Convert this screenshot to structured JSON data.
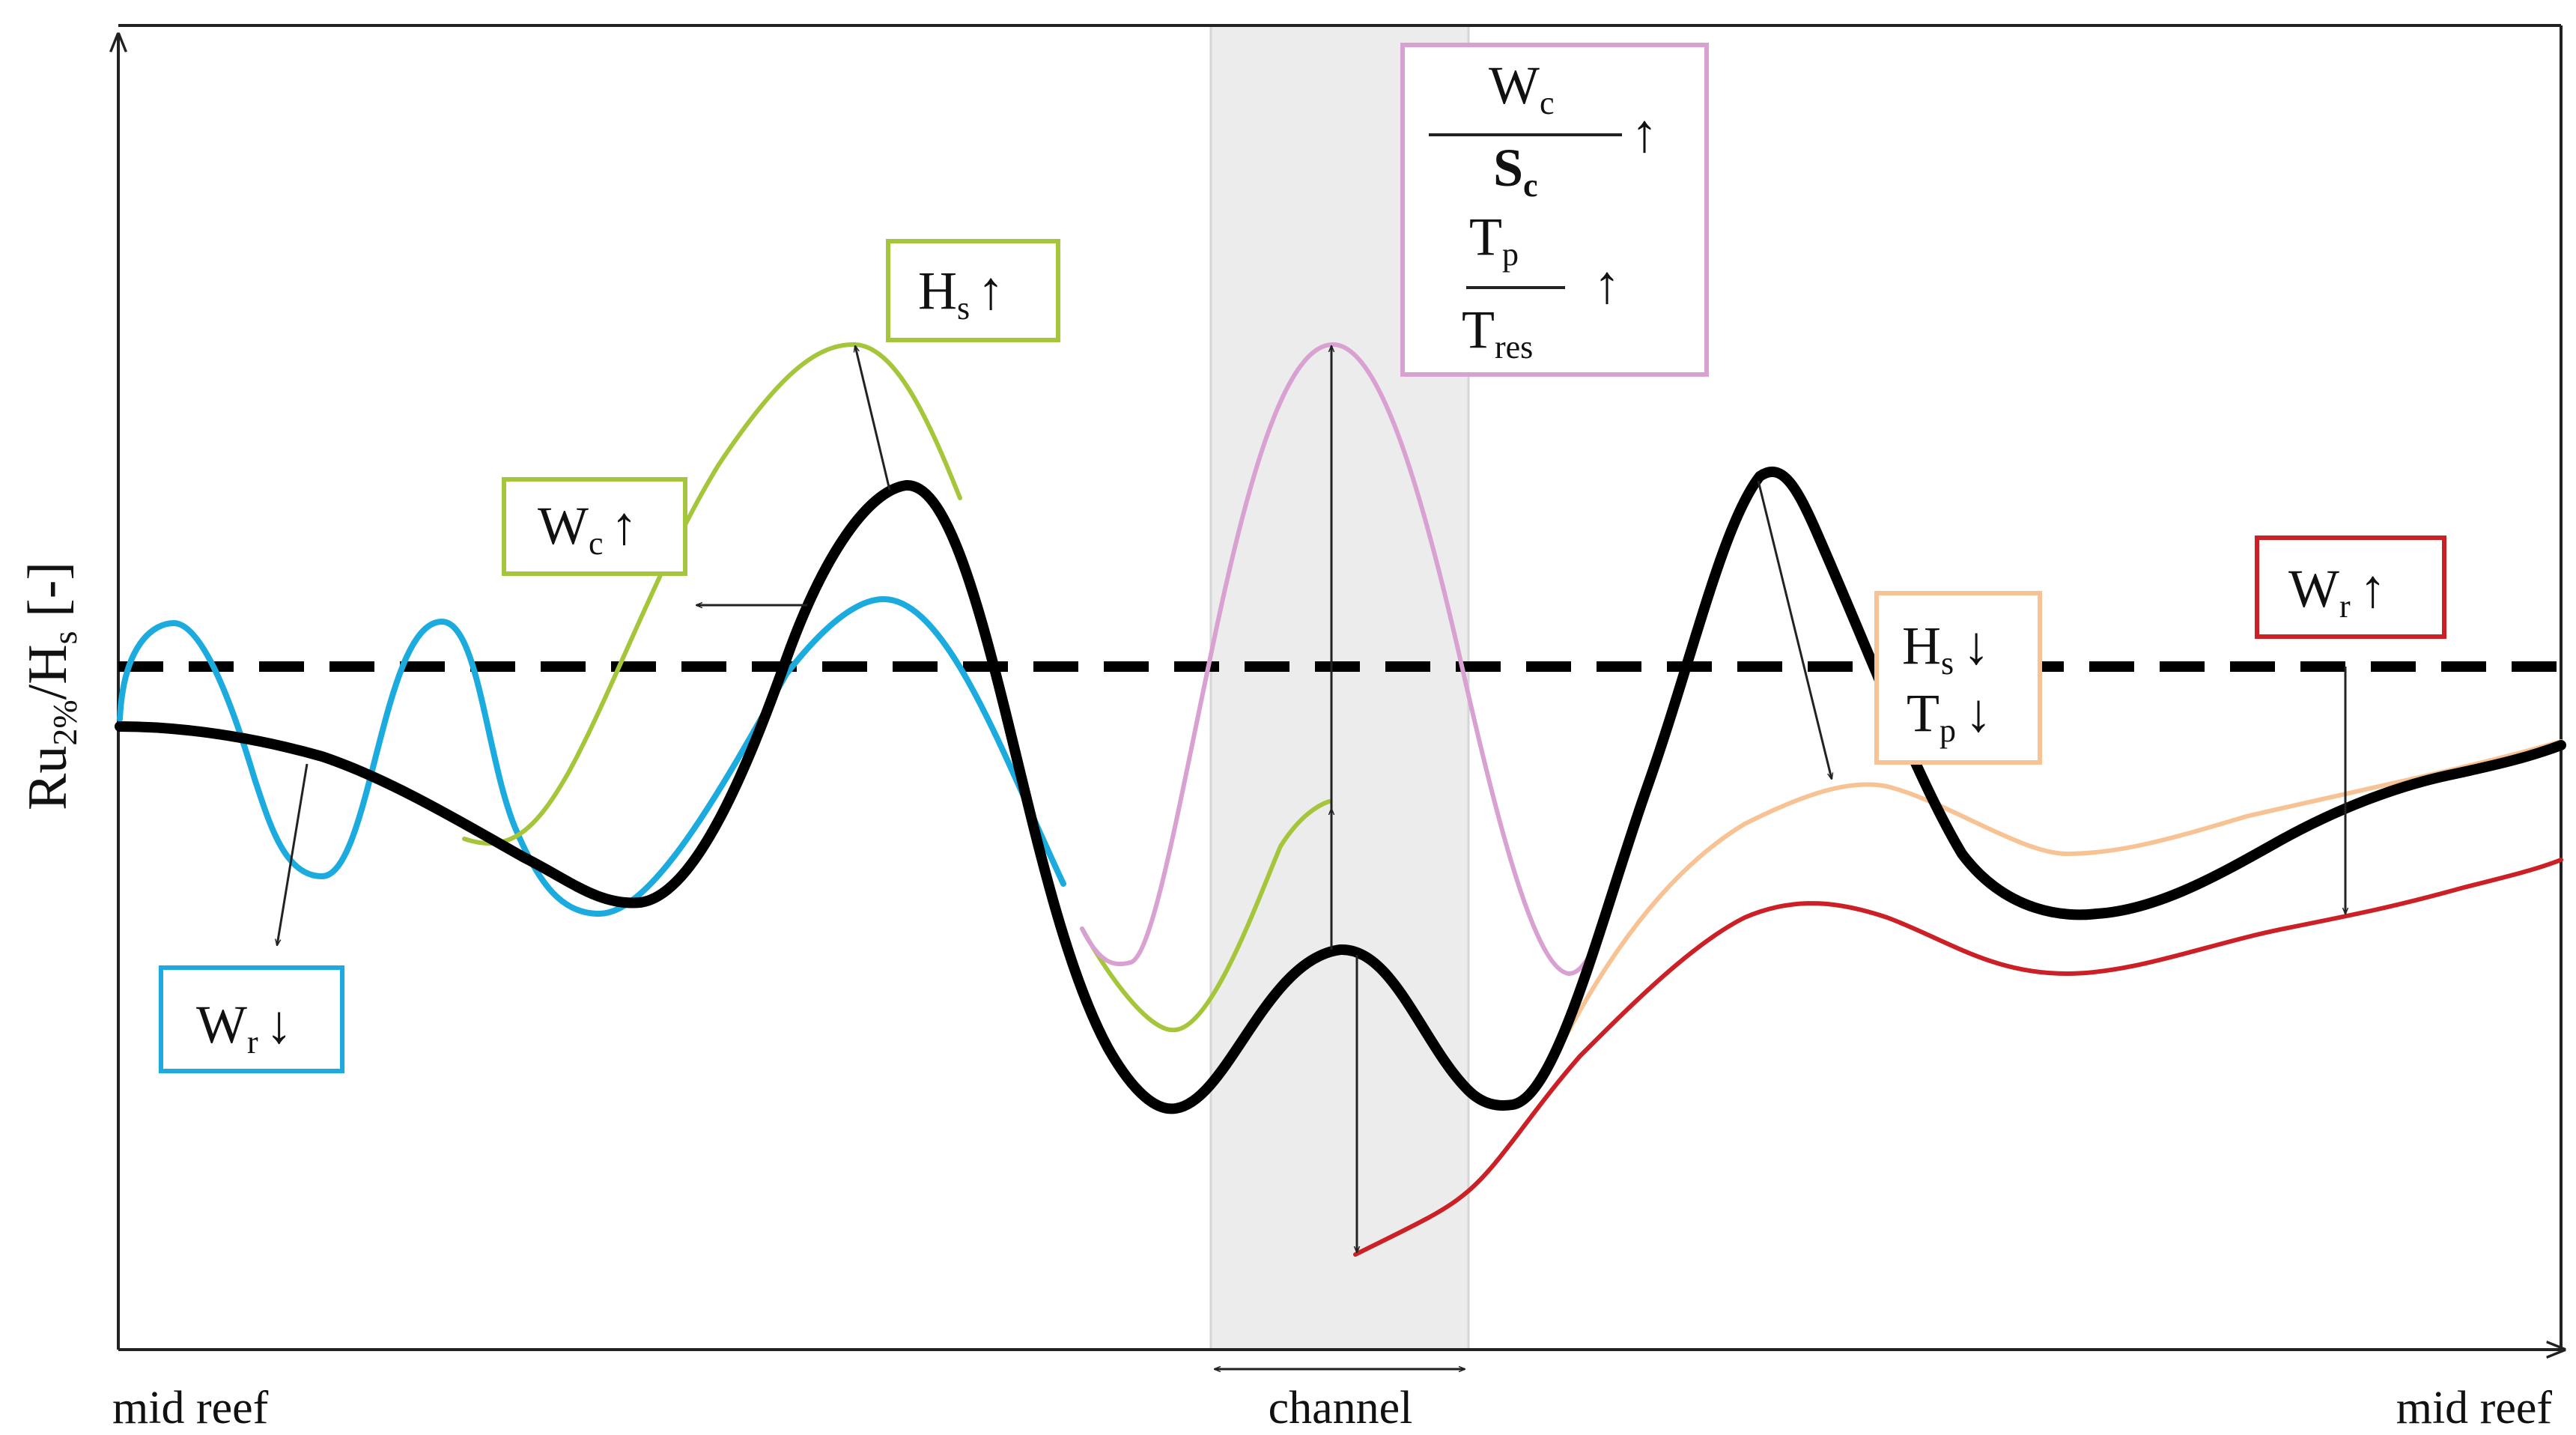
{
  "colors": {
    "base": "#000000",
    "blue": "#1cabdf",
    "green": "#a5c63a",
    "pink": "#d9a0d2",
    "orange": "#f8c394",
    "red": "#cc2027",
    "channel_band": "#ececec"
  },
  "axes": {
    "ylabel_main": "Ru",
    "ylabel_sub": "2%",
    "ylabel_slash": "/H",
    "ylabel_sub2": "s",
    "ylabel_tail": " [-]",
    "x_left_label": "mid reef",
    "x_right_label": "mid reef",
    "channel_label": "channel"
  },
  "boxes": {
    "wr_down": {
      "main": "W",
      "sub": "r",
      "arrow": "↓",
      "color": "blue"
    },
    "wc_up": {
      "main": "W",
      "sub": "c",
      "arrow": "↑",
      "color": "green"
    },
    "hs_up": {
      "main": "H",
      "sub": "s",
      "arrow": "↑",
      "color": "green"
    },
    "ratios": {
      "num1": "W",
      "num1_sub": "c",
      "den1": "S",
      "den1_sub": "c",
      "arrow1": "↑",
      "num2": "T",
      "num2_sub": "p",
      "den2": "T",
      "den2_sub": "res",
      "arrow2": "↑",
      "color": "pink"
    },
    "hs_tp_down": {
      "l1": "H",
      "l1_sub": "s",
      "l1_arrow": "↓",
      "l2": "T",
      "l2_sub": "p",
      "l2_arrow": "↓",
      "color": "orange"
    },
    "wr_up": {
      "main": "W",
      "sub": "r",
      "arrow": "↑",
      "color": "red"
    }
  }
}
